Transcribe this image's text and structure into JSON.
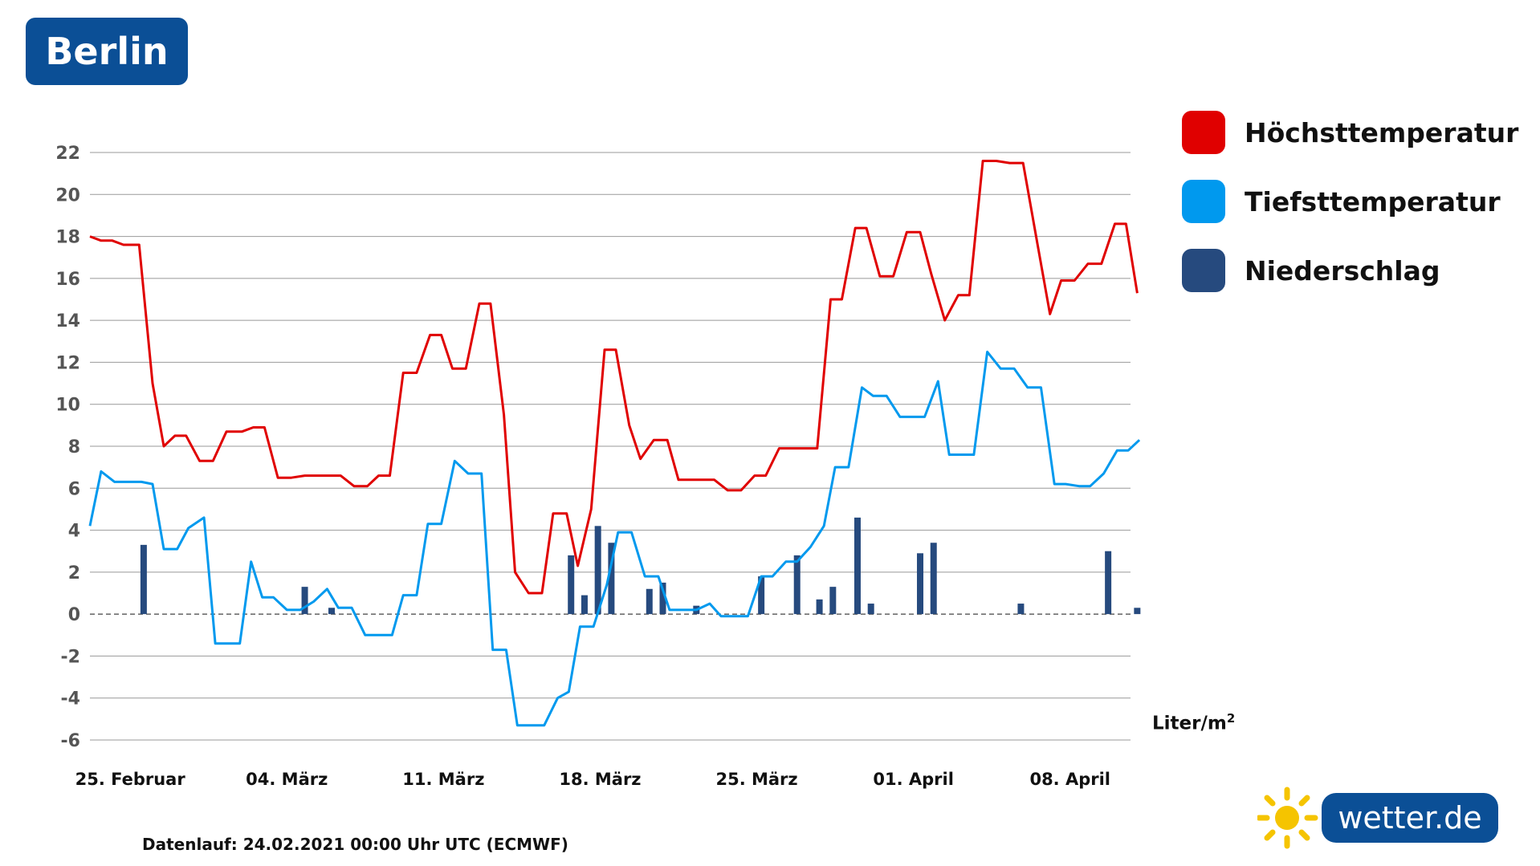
{
  "city": "Berlin",
  "unit": {
    "base": "Liter/m",
    "sup": "2"
  },
  "footer": "Datenlauf: 24.02.2021 00:00 Uhr UTC (ECMWF)",
  "logo_text": "wetter.de",
  "logo_icon": "sun-icon",
  "colors": {
    "max_temp": "#e00000",
    "min_temp": "#0099ee",
    "precip": "#264a7e",
    "grid": "#999999",
    "badge": "#0b4f96"
  },
  "legend": [
    {
      "label": "Höchsttemperatur",
      "color": "#e00000"
    },
    {
      "label": "Tiefsttemperatur",
      "color": "#0099ee"
    },
    {
      "label": "Niederschlag",
      "color": "#264a7e"
    }
  ],
  "chart_data": {
    "type": "line",
    "x_ticks": [
      "25. Februar",
      "04. März",
      "11. März",
      "18. März",
      "25. März",
      "01. April",
      "08. April"
    ],
    "x_tick_index": [
      1.8,
      8.8,
      15.8,
      22.8,
      29.8,
      36.8,
      43.8
    ],
    "x_range": [
      0,
      46.5
    ],
    "ylim": [
      -6,
      22
    ],
    "y_ticks": [
      22,
      20,
      18,
      16,
      14,
      12,
      10,
      8,
      6,
      4,
      2,
      0,
      -2,
      -4,
      -6
    ],
    "grid": true,
    "legend_position": "right",
    "series": [
      {
        "name": "Höchsttemperatur",
        "color": "#e00000",
        "points": [
          [
            0,
            18
          ],
          [
            0.5,
            17.8
          ],
          [
            1,
            17.8
          ],
          [
            1.5,
            17.6
          ],
          [
            2.2,
            17.6
          ],
          [
            2.8,
            11
          ],
          [
            3.3,
            8
          ],
          [
            3.8,
            8.5
          ],
          [
            4.3,
            8.5
          ],
          [
            4.9,
            7.3
          ],
          [
            5.5,
            7.3
          ],
          [
            6.1,
            8.7
          ],
          [
            6.8,
            8.7
          ],
          [
            7.3,
            8.9
          ],
          [
            7.8,
            8.9
          ],
          [
            8.4,
            6.5
          ],
          [
            9,
            6.5
          ],
          [
            9.6,
            6.6
          ],
          [
            10.3,
            6.6
          ],
          [
            11.2,
            6.6
          ],
          [
            11.8,
            6.1
          ],
          [
            12.4,
            6.1
          ],
          [
            12.9,
            6.6
          ],
          [
            13.4,
            6.6
          ],
          [
            14,
            11.5
          ],
          [
            14.6,
            11.5
          ],
          [
            15.2,
            13.3
          ],
          [
            15.7,
            13.3
          ],
          [
            16.2,
            11.7
          ],
          [
            16.8,
            11.7
          ],
          [
            17.4,
            14.8
          ],
          [
            17.9,
            14.8
          ],
          [
            18.5,
            9.5
          ],
          [
            19,
            2
          ],
          [
            19.6,
            1
          ],
          [
            20.2,
            1
          ],
          [
            20.7,
            4.8
          ],
          [
            21.3,
            4.8
          ],
          [
            21.8,
            2.3
          ],
          [
            22.4,
            5
          ],
          [
            23,
            12.6
          ],
          [
            23.5,
            12.6
          ],
          [
            24.1,
            9
          ],
          [
            24.6,
            7.4
          ],
          [
            25.2,
            8.3
          ],
          [
            25.8,
            8.3
          ],
          [
            26.3,
            6.4
          ],
          [
            27,
            6.4
          ],
          [
            27.9,
            6.4
          ],
          [
            28.5,
            5.9
          ],
          [
            29.1,
            5.9
          ],
          [
            29.7,
            6.6
          ],
          [
            30.2,
            6.6
          ],
          [
            30.8,
            7.9
          ],
          [
            31.5,
            7.9
          ],
          [
            32.5,
            7.9
          ],
          [
            33.1,
            15
          ],
          [
            33.6,
            15
          ],
          [
            34.2,
            18.4
          ],
          [
            34.7,
            18.4
          ],
          [
            35.3,
            16.1
          ],
          [
            35.9,
            16.1
          ],
          [
            36.5,
            18.2
          ],
          [
            37.1,
            18.2
          ],
          [
            37.6,
            16.2
          ],
          [
            38.2,
            14
          ],
          [
            38.8,
            15.2
          ],
          [
            39.3,
            15.2
          ],
          [
            39.9,
            21.6
          ],
          [
            40.5,
            21.6
          ],
          [
            41.1,
            21.5
          ],
          [
            41.7,
            21.5
          ],
          [
            42.3,
            17.9
          ],
          [
            42.9,
            14.3
          ],
          [
            43.4,
            15.9
          ],
          [
            44,
            15.9
          ],
          [
            44.6,
            16.7
          ],
          [
            45.2,
            16.7
          ],
          [
            45.8,
            18.6
          ],
          [
            46.3,
            18.6
          ],
          [
            46.8,
            15.3
          ]
        ]
      },
      {
        "name": "Tiefsttemperatur",
        "color": "#0099ee",
        "points": [
          [
            0,
            4.2
          ],
          [
            0.5,
            6.8
          ],
          [
            1.1,
            6.3
          ],
          [
            1.7,
            6.3
          ],
          [
            2.3,
            6.3
          ],
          [
            2.8,
            6.2
          ],
          [
            3.3,
            3.1
          ],
          [
            3.9,
            3.1
          ],
          [
            4.4,
            4.1
          ],
          [
            5.1,
            4.6
          ],
          [
            5.6,
            -1.4
          ],
          [
            6.2,
            -1.4
          ],
          [
            6.7,
            -1.4
          ],
          [
            7.2,
            2.5
          ],
          [
            7.7,
            0.8
          ],
          [
            8.2,
            0.8
          ],
          [
            8.8,
            0.2
          ],
          [
            9.4,
            0.2
          ],
          [
            10,
            0.6
          ],
          [
            10.6,
            1.2
          ],
          [
            11.1,
            0.3
          ],
          [
            11.7,
            0.3
          ],
          [
            12.3,
            -1
          ],
          [
            12.9,
            -1
          ],
          [
            13.5,
            -1
          ],
          [
            14,
            0.9
          ],
          [
            14.6,
            0.9
          ],
          [
            15.1,
            4.3
          ],
          [
            15.7,
            4.3
          ],
          [
            16.3,
            7.3
          ],
          [
            16.9,
            6.7
          ],
          [
            17.5,
            6.7
          ],
          [
            18,
            -1.7
          ],
          [
            18.6,
            -1.7
          ],
          [
            19.1,
            -5.3
          ],
          [
            19.7,
            -5.3
          ],
          [
            20.3,
            -5.3
          ],
          [
            20.9,
            -4
          ],
          [
            21.4,
            -3.7
          ],
          [
            21.9,
            -0.6
          ],
          [
            22.5,
            -0.6
          ],
          [
            23.1,
            1.4
          ],
          [
            23.6,
            3.9
          ],
          [
            24.2,
            3.9
          ],
          [
            24.8,
            1.8
          ],
          [
            25.4,
            1.8
          ],
          [
            25.9,
            0.2
          ],
          [
            26.5,
            0.2
          ],
          [
            27.1,
            0.2
          ],
          [
            27.7,
            0.5
          ],
          [
            28.2,
            -0.1
          ],
          [
            28.8,
            -0.1
          ],
          [
            29.4,
            -0.1
          ],
          [
            30,
            1.8
          ],
          [
            30.5,
            1.8
          ],
          [
            31.1,
            2.5
          ],
          [
            31.6,
            2.5
          ],
          [
            32.2,
            3.2
          ],
          [
            32.8,
            4.2
          ],
          [
            33.3,
            7
          ],
          [
            33.9,
            7
          ],
          [
            34.5,
            10.8
          ],
          [
            35,
            10.4
          ],
          [
            35.6,
            10.4
          ],
          [
            36.2,
            9.4
          ],
          [
            36.8,
            9.4
          ],
          [
            37.3,
            9.4
          ],
          [
            37.9,
            11.1
          ],
          [
            38.4,
            7.6
          ],
          [
            38.9,
            7.6
          ],
          [
            39.5,
            7.6
          ],
          [
            40.1,
            12.5
          ],
          [
            40.7,
            11.7
          ],
          [
            41.3,
            11.7
          ],
          [
            41.9,
            10.8
          ],
          [
            42.5,
            10.8
          ],
          [
            43.1,
            6.2
          ],
          [
            43.6,
            6.2
          ],
          [
            44.2,
            6.1
          ],
          [
            44.7,
            6.1
          ],
          [
            45.3,
            6.7
          ],
          [
            45.9,
            7.8
          ],
          [
            46.4,
            7.8
          ],
          [
            46.9,
            8.3
          ]
        ]
      },
      {
        "name": "Niederschlag",
        "color": "#264a7e",
        "type": "bar",
        "points": [
          [
            2.4,
            3.3
          ],
          [
            9.6,
            1.3
          ],
          [
            10.8,
            0.3
          ],
          [
            21.5,
            2.8
          ],
          [
            22.1,
            0.9
          ],
          [
            22.7,
            4.2
          ],
          [
            23.3,
            3.4
          ],
          [
            25,
            1.2
          ],
          [
            25.6,
            1.5
          ],
          [
            27.1,
            0.4
          ],
          [
            30,
            1.8
          ],
          [
            31.6,
            2.8
          ],
          [
            32.6,
            0.7
          ],
          [
            33.2,
            1.3
          ],
          [
            34.3,
            4.6
          ],
          [
            34.9,
            0.5
          ],
          [
            37.1,
            2.9
          ],
          [
            37.7,
            3.4
          ],
          [
            41.6,
            0.5
          ],
          [
            45.5,
            3
          ],
          [
            46.8,
            0.3
          ]
        ]
      }
    ]
  }
}
